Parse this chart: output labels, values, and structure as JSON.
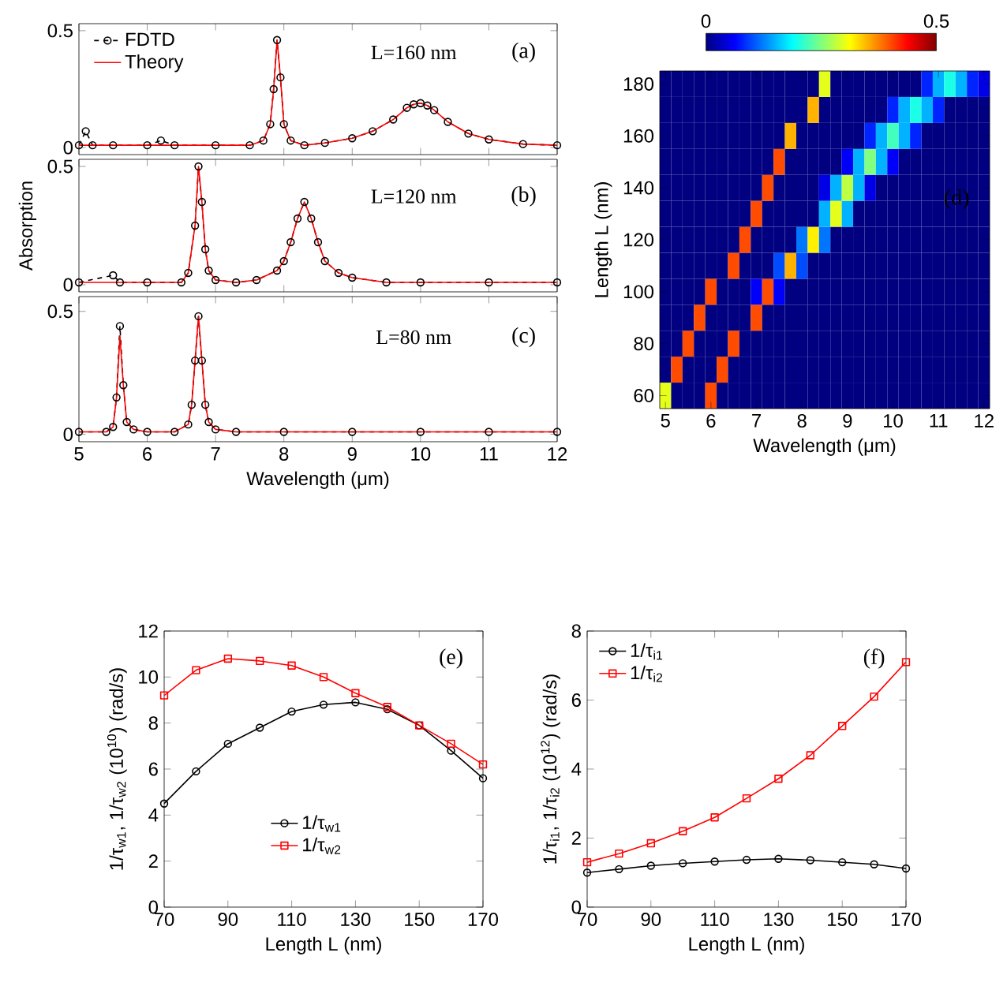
{
  "chart_data": [
    {
      "type": "line",
      "xlim": [
        5,
        12
      ],
      "ylim": [
        -0.03,
        0.53
      ],
      "xticks": [
        5,
        6,
        7,
        8,
        9,
        10,
        11,
        12
      ],
      "yticks": [
        0,
        0.5
      ],
      "tick_labels": "y",
      "legend": "top left",
      "annotations": [
        "L=160 nm",
        "(a)"
      ],
      "series": [
        {
          "name": "FDTD",
          "color": "#000000",
          "marker": "circle",
          "line_style": "dashed",
          "x": [
            5,
            5.1,
            5.2,
            5.5,
            6.0,
            6.2,
            6.4,
            7.0,
            7.5,
            7.7,
            7.8,
            7.85,
            7.9,
            7.95,
            8.0,
            8.1,
            8.3,
            8.6,
            9.0,
            9.3,
            9.6,
            9.8,
            9.9,
            10.0,
            10.1,
            10.2,
            10.4,
            10.7,
            11.0,
            11.5,
            12
          ],
          "values": [
            0.01,
            0.07,
            0.01,
            0.01,
            0.01,
            0.03,
            0.01,
            0.01,
            0.01,
            0.03,
            0.1,
            0.25,
            0.46,
            0.3,
            0.1,
            0.03,
            0.01,
            0.02,
            0.04,
            0.07,
            0.12,
            0.17,
            0.185,
            0.19,
            0.18,
            0.16,
            0.11,
            0.06,
            0.035,
            0.015,
            0.01
          ]
        },
        {
          "name": "Theory",
          "color": "#ff0000",
          "marker": "none",
          "line_style": "solid",
          "x": [
            5,
            5.5,
            6.0,
            7.0,
            7.5,
            7.7,
            7.8,
            7.85,
            7.9,
            7.95,
            8.0,
            8.1,
            8.3,
            8.6,
            9.0,
            9.3,
            9.6,
            9.8,
            9.9,
            10.0,
            10.1,
            10.2,
            10.4,
            10.7,
            11.0,
            11.5,
            12
          ],
          "values": [
            0.01,
            0.01,
            0.01,
            0.01,
            0.01,
            0.03,
            0.1,
            0.25,
            0.46,
            0.3,
            0.1,
            0.03,
            0.01,
            0.02,
            0.04,
            0.07,
            0.12,
            0.17,
            0.185,
            0.19,
            0.18,
            0.16,
            0.11,
            0.06,
            0.035,
            0.015,
            0.01
          ]
        }
      ]
    },
    {
      "type": "line",
      "xlim": [
        5,
        12
      ],
      "ylim": [
        -0.03,
        0.53
      ],
      "xticks": [
        5,
        6,
        7,
        8,
        9,
        10,
        11,
        12
      ],
      "yticks": [
        0,
        0.5
      ],
      "tick_labels": "y",
      "ylabel": "Absorption",
      "annotations": [
        "L=120 nm",
        "(b)"
      ],
      "series": [
        {
          "color": "#000000",
          "marker": "circle",
          "line_style": "dashed",
          "x": [
            5,
            5.5,
            5.6,
            6.0,
            6.5,
            6.6,
            6.7,
            6.75,
            6.8,
            6.85,
            6.9,
            7.0,
            7.3,
            7.6,
            7.9,
            8.0,
            8.1,
            8.2,
            8.3,
            8.4,
            8.5,
            8.6,
            8.8,
            9.0,
            9.5,
            10,
            11,
            12
          ],
          "values": [
            0.01,
            0.04,
            0.01,
            0.01,
            0.01,
            0.05,
            0.25,
            0.5,
            0.35,
            0.15,
            0.06,
            0.02,
            0.01,
            0.02,
            0.06,
            0.1,
            0.18,
            0.28,
            0.35,
            0.28,
            0.18,
            0.1,
            0.05,
            0.03,
            0.01,
            0.01,
            0.01,
            0.01
          ]
        },
        {
          "color": "#ff0000",
          "marker": "none",
          "line_style": "solid",
          "x": [
            5,
            6.0,
            6.5,
            6.6,
            6.7,
            6.75,
            6.8,
            6.85,
            6.9,
            7.0,
            7.3,
            7.6,
            7.9,
            8.0,
            8.1,
            8.2,
            8.3,
            8.4,
            8.5,
            8.6,
            8.8,
            9.0,
            9.5,
            10,
            11,
            12
          ],
          "values": [
            0.01,
            0.01,
            0.01,
            0.05,
            0.25,
            0.5,
            0.35,
            0.15,
            0.06,
            0.02,
            0.01,
            0.02,
            0.06,
            0.1,
            0.18,
            0.28,
            0.35,
            0.28,
            0.18,
            0.1,
            0.05,
            0.03,
            0.01,
            0.01,
            0.01,
            0.01
          ]
        }
      ]
    },
    {
      "type": "line",
      "xlim": [
        5,
        12
      ],
      "ylim": [
        -0.03,
        0.56
      ],
      "xticks": [
        5,
        6,
        7,
        8,
        9,
        10,
        11,
        12
      ],
      "yticks": [
        0,
        0.5
      ],
      "xlabel": "Wavelength (μm)",
      "annotations": [
        "L=80 nm",
        "(c)"
      ],
      "series": [
        {
          "color": "#000000",
          "marker": "circle",
          "line_style": "dashed",
          "x": [
            5,
            5.4,
            5.5,
            5.55,
            5.6,
            5.65,
            5.7,
            5.8,
            6.0,
            6.4,
            6.6,
            6.65,
            6.7,
            6.75,
            6.8,
            6.85,
            6.9,
            7.0,
            7.3,
            8,
            9,
            10,
            11,
            12
          ],
          "values": [
            0.01,
            0.01,
            0.03,
            0.15,
            0.44,
            0.2,
            0.05,
            0.02,
            0.01,
            0.01,
            0.04,
            0.12,
            0.3,
            0.48,
            0.3,
            0.12,
            0.05,
            0.02,
            0.01,
            0.01,
            0.01,
            0.01,
            0.01,
            0.01
          ]
        },
        {
          "color": "#ff0000",
          "marker": "none",
          "line_style": "solid",
          "x": [
            5,
            5.4,
            5.5,
            5.55,
            5.6,
            5.65,
            5.7,
            5.8,
            6.0,
            6.4,
            6.6,
            6.65,
            6.7,
            6.75,
            6.8,
            6.85,
            6.9,
            7.0,
            7.3,
            8,
            9,
            10,
            11,
            12
          ],
          "values": [
            0.01,
            0.01,
            0.03,
            0.15,
            0.4,
            0.2,
            0.05,
            0.02,
            0.01,
            0.01,
            0.04,
            0.12,
            0.3,
            0.48,
            0.3,
            0.12,
            0.05,
            0.02,
            0.01,
            0.01,
            0.01,
            0.01,
            0.01,
            0.01
          ]
        }
      ]
    },
    {
      "type": "heatmap",
      "xlabel": "Wavelength (μm)",
      "ylabel": "Length L (nm)",
      "annotations": [
        "(d)"
      ],
      "clim": [
        0,
        0.5
      ],
      "cticks": [
        0,
        0.5
      ],
      "categories": [
        "5",
        null,
        null,
        null,
        "6",
        null,
        null,
        null,
        "7",
        null,
        null,
        null,
        "8",
        null,
        null,
        null,
        "9",
        null,
        null,
        null,
        "10",
        null,
        null,
        null,
        "11",
        null,
        null,
        null,
        "12"
      ],
      "y_categories": [
        "180",
        null,
        "160",
        null,
        "140",
        null,
        "120",
        null,
        "100",
        null,
        "80",
        null,
        "60"
      ],
      "cells": [
        [
          0,
          0,
          0,
          0,
          0,
          0,
          0,
          0,
          0,
          0,
          0,
          0,
          0,
          0,
          0.3,
          0,
          0,
          0,
          0,
          0,
          0,
          0,
          0,
          0.08,
          0.15,
          0.2,
          0.15,
          0.08,
          0.05
        ],
        [
          0,
          0,
          0,
          0,
          0,
          0,
          0,
          0,
          0,
          0,
          0,
          0,
          0,
          0.35,
          0,
          0,
          0,
          0,
          0,
          0,
          0.08,
          0.15,
          0.2,
          0.15,
          0.08,
          0,
          0,
          0,
          0
        ],
        [
          0,
          0,
          0,
          0,
          0,
          0,
          0,
          0,
          0,
          0,
          0,
          0.35,
          0,
          0,
          0,
          0,
          0,
          0,
          0.08,
          0.15,
          0.22,
          0.15,
          0.08,
          0,
          0,
          0,
          0,
          0,
          0
        ],
        [
          0,
          0,
          0,
          0,
          0,
          0,
          0,
          0,
          0,
          0,
          0.4,
          0,
          0,
          0,
          0,
          0,
          0.06,
          0.15,
          0.25,
          0.15,
          0.06,
          0,
          0,
          0,
          0,
          0,
          0,
          0,
          0
        ],
        [
          0,
          0,
          0,
          0,
          0,
          0,
          0,
          0,
          0,
          0.4,
          0,
          0,
          0,
          0,
          0.05,
          0.15,
          0.28,
          0.15,
          0.05,
          0,
          0,
          0,
          0,
          0,
          0,
          0,
          0,
          0,
          0
        ],
        [
          0,
          0,
          0,
          0,
          0,
          0,
          0,
          0,
          0.4,
          0,
          0,
          0,
          0,
          0,
          0.15,
          0.3,
          0.15,
          0,
          0,
          0,
          0,
          0,
          0,
          0,
          0,
          0,
          0,
          0,
          0
        ],
        [
          0,
          0,
          0,
          0,
          0,
          0,
          0,
          0.4,
          0,
          0,
          0,
          0,
          0.12,
          0.32,
          0.12,
          0,
          0,
          0,
          0,
          0,
          0,
          0,
          0,
          0,
          0,
          0,
          0,
          0,
          0
        ],
        [
          0,
          0,
          0,
          0,
          0,
          0,
          0.4,
          0,
          0,
          0,
          0.1,
          0.35,
          0.1,
          0,
          0,
          0,
          0,
          0,
          0,
          0,
          0,
          0,
          0,
          0,
          0,
          0,
          0,
          0,
          0
        ],
        [
          0,
          0,
          0,
          0,
          0.4,
          0,
          0,
          0,
          0.06,
          0.4,
          0.06,
          0,
          0,
          0,
          0,
          0,
          0,
          0,
          0,
          0,
          0,
          0,
          0,
          0,
          0,
          0,
          0,
          0,
          0
        ],
        [
          0,
          0,
          0,
          0.4,
          0,
          0,
          0,
          0,
          0.4,
          0,
          0,
          0,
          0,
          0,
          0,
          0,
          0,
          0,
          0,
          0,
          0,
          0,
          0,
          0,
          0,
          0,
          0,
          0,
          0
        ],
        [
          0,
          0,
          0.4,
          0,
          0,
          0,
          0.4,
          0,
          0,
          0,
          0,
          0,
          0,
          0,
          0,
          0,
          0,
          0,
          0,
          0,
          0,
          0,
          0,
          0,
          0,
          0,
          0,
          0,
          0
        ],
        [
          0,
          0.4,
          0,
          0,
          0,
          0.4,
          0,
          0,
          0,
          0,
          0,
          0,
          0,
          0,
          0,
          0,
          0,
          0,
          0,
          0,
          0,
          0,
          0,
          0,
          0,
          0,
          0,
          0,
          0
        ],
        [
          0.3,
          0,
          0,
          0,
          0.4,
          0,
          0,
          0,
          0,
          0,
          0,
          0,
          0,
          0,
          0,
          0,
          0,
          0,
          0,
          0,
          0,
          0,
          0,
          0,
          0,
          0,
          0,
          0,
          0
        ]
      ]
    },
    {
      "type": "line",
      "xlabel": "Length L (nm)",
      "ylabel": "1/τ$_{w1}$, 1/τ$_{w2}$ (10$^{10}$) (rad/s)",
      "xlim": [
        70,
        170
      ],
      "ylim": [
        0,
        12
      ],
      "xticks": [
        70,
        90,
        110,
        130,
        150,
        170
      ],
      "yticks": [
        0,
        2,
        4,
        6,
        8,
        10,
        12
      ],
      "legend": "bottom",
      "annotations": [
        "(e)"
      ],
      "x": [
        70,
        80,
        90,
        100,
        110,
        120,
        130,
        140,
        150,
        160,
        170
      ],
      "series": [
        {
          "name": "1/τ$_{w1}$",
          "color": "#000000",
          "marker": "circle",
          "values": [
            4.5,
            5.9,
            7.1,
            7.8,
            8.5,
            8.8,
            8.9,
            8.6,
            7.9,
            6.8,
            5.6
          ]
        },
        {
          "name": "1/τ$_{w2}$",
          "color": "#ff0000",
          "marker": "square",
          "values": [
            9.2,
            10.3,
            10.8,
            10.7,
            10.5,
            10.0,
            9.3,
            8.7,
            7.9,
            7.1,
            6.2
          ]
        }
      ]
    },
    {
      "type": "line",
      "xlabel": "Length L (nm)",
      "ylabel": "1/τ$_{i1}$, 1/τ$_{i2}$ (10$^{12}$) (rad/s)",
      "xlim": [
        70,
        170
      ],
      "ylim": [
        0,
        8
      ],
      "xticks": [
        70,
        90,
        110,
        130,
        150,
        170
      ],
      "yticks": [
        0,
        2,
        4,
        6,
        8
      ],
      "legend": "top left",
      "annotations": [
        "(f)"
      ],
      "x": [
        70,
        80,
        90,
        100,
        110,
        120,
        130,
        140,
        150,
        160,
        170
      ],
      "series": [
        {
          "name": "1/τ$_{i1}$",
          "color": "#000000",
          "marker": "circle",
          "values": [
            1.0,
            1.1,
            1.2,
            1.27,
            1.32,
            1.37,
            1.4,
            1.36,
            1.3,
            1.24,
            1.12
          ]
        },
        {
          "name": "1/τ$_{i2}$",
          "color": "#ff0000",
          "marker": "square",
          "values": [
            1.3,
            1.55,
            1.85,
            2.2,
            2.6,
            3.15,
            3.72,
            4.4,
            5.25,
            6.1,
            7.1
          ]
        }
      ]
    }
  ]
}
